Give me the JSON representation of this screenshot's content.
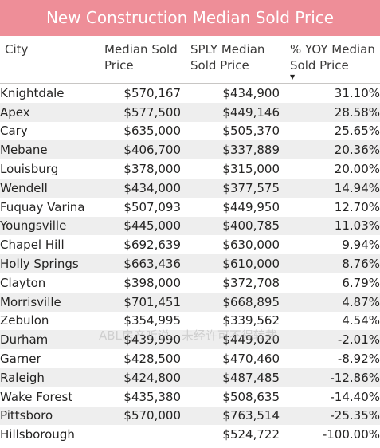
{
  "title": "New Construction Median Sold Price",
  "headers": {
    "city": "City",
    "median_line1": "Median Sold",
    "median_line2": "Price",
    "sply_line1": "SPLY Median",
    "sply_line2": "Sold Price",
    "yoy_line1": "% YOY Median",
    "yoy_line2": "Sold Price",
    "sort_icon": "sort-descending-icon"
  },
  "rows": [
    {
      "city": "Knightdale",
      "median": "$570,167",
      "sply": "$434,900",
      "yoy": "31.10%"
    },
    {
      "city": "Apex",
      "median": "$577,500",
      "sply": "$449,146",
      "yoy": "28.58%"
    },
    {
      "city": "Cary",
      "median": "$635,000",
      "sply": "$505,370",
      "yoy": "25.65%"
    },
    {
      "city": "Mebane",
      "median": "$406,700",
      "sply": "$337,889",
      "yoy": "20.36%"
    },
    {
      "city": "Louisburg",
      "median": "$378,000",
      "sply": "$315,000",
      "yoy": "20.00%"
    },
    {
      "city": "Wendell",
      "median": "$434,000",
      "sply": "$377,575",
      "yoy": "14.94%"
    },
    {
      "city": "Fuquay Varina",
      "median": "$507,093",
      "sply": "$449,950",
      "yoy": "12.70%"
    },
    {
      "city": "Youngsville",
      "median": "$445,000",
      "sply": "$400,785",
      "yoy": "11.03%"
    },
    {
      "city": "Chapel Hill",
      "median": "$692,639",
      "sply": "$630,000",
      "yoy": "9.94%"
    },
    {
      "city": "Holly Springs",
      "median": "$663,436",
      "sply": "$610,000",
      "yoy": "8.76%"
    },
    {
      "city": "Clayton",
      "median": "$398,000",
      "sply": "$372,708",
      "yoy": "6.79%"
    },
    {
      "city": "Morrisville",
      "median": "$701,451",
      "sply": "$668,895",
      "yoy": "4.87%"
    },
    {
      "city": "Zebulon",
      "median": "$354,995",
      "sply": "$339,562",
      "yoy": "4.54%"
    },
    {
      "city": "Durham",
      "median": "$439,990",
      "sply": "$449,020",
      "yoy": "-2.01%"
    },
    {
      "city": "Garner",
      "median": "$428,500",
      "sply": "$470,460",
      "yoy": "-8.92%"
    },
    {
      "city": "Raleigh",
      "median": "$424,800",
      "sply": "$487,485",
      "yoy": "-12.86%"
    },
    {
      "city": "Wake Forest",
      "median": "$435,380",
      "sply": "$508,635",
      "yoy": "-14.40%"
    },
    {
      "city": "Pittsboro",
      "median": "$570,000",
      "sply": "$763,514",
      "yoy": "-25.35%"
    },
    {
      "city": "Hillsborough",
      "median": "",
      "sply": "$524,722",
      "yoy": "-100.00%"
    }
  ],
  "watermark": "ABL房产听说，未经许可不得转载",
  "colors": {
    "title_bg": "#ee8e98",
    "row_alt": "#eeeeee"
  }
}
